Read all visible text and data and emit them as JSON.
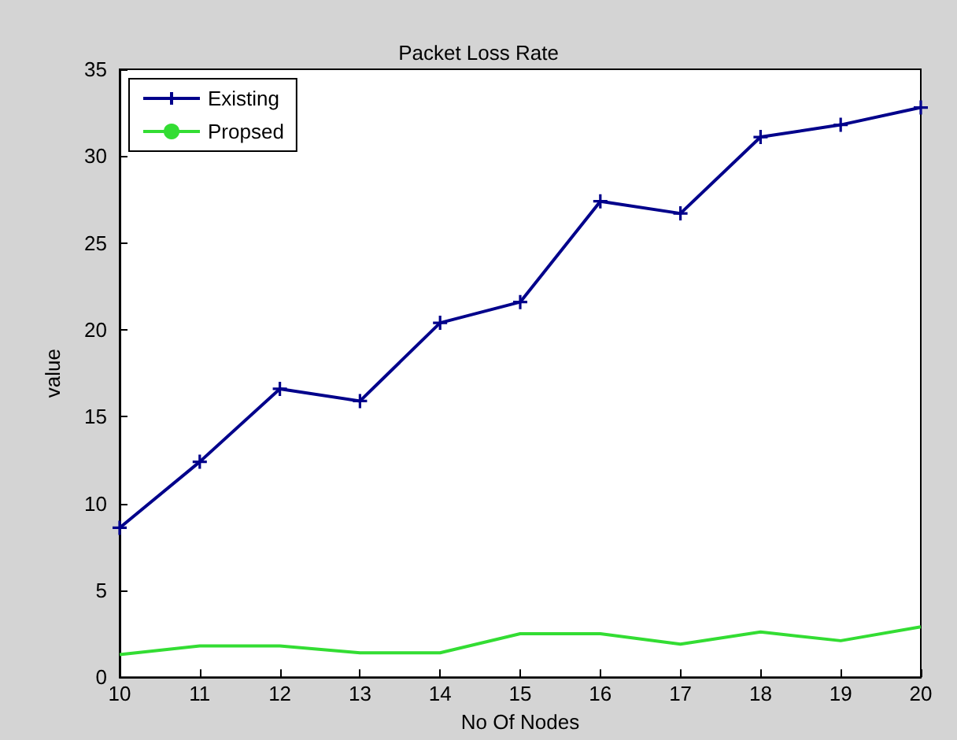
{
  "chart_data": {
    "type": "line",
    "title": "Packet Loss Rate",
    "xlabel": "No Of Nodes",
    "ylabel": "value",
    "x": [
      10,
      11,
      12,
      13,
      14,
      15,
      16,
      17,
      18,
      19,
      20
    ],
    "series": [
      {
        "name": "Existing",
        "color": "#00008b",
        "marker": "cross",
        "values": [
          8.6,
          12.4,
          16.6,
          15.9,
          20.4,
          21.6,
          27.4,
          26.7,
          31.1,
          31.8,
          32.8
        ]
      },
      {
        "name": "Propsed",
        "color": "#33dd33",
        "marker": "none",
        "values": [
          1.3,
          1.8,
          1.8,
          1.4,
          1.4,
          2.5,
          2.5,
          1.9,
          2.6,
          2.1,
          2.9
        ]
      }
    ],
    "xlim": [
      10,
      20
    ],
    "xticks": [
      10,
      11,
      12,
      13,
      14,
      15,
      16,
      17,
      18,
      19,
      20
    ],
    "ylim": [
      0,
      35
    ],
    "yticks": [
      0,
      5,
      10,
      15,
      20,
      25,
      30,
      35
    ],
    "grid": false,
    "legend": "top left"
  }
}
